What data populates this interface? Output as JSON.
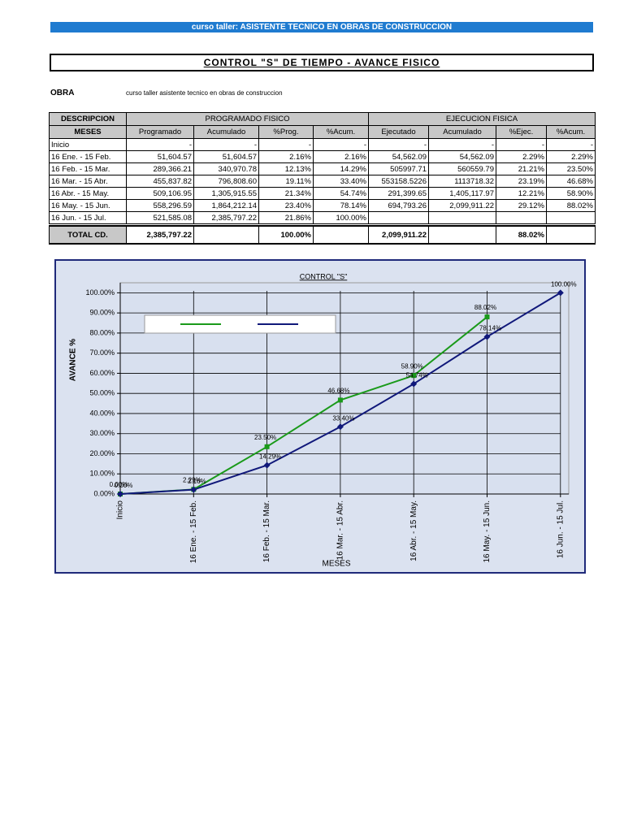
{
  "header": {
    "banner": "curso taller: ASISTENTE TECNICO EN OBRAS DE CONSTRUCCION",
    "title": "CONTROL \"S\"  DE TIEMPO - AVANCE FISICO",
    "obra_label": "OBRA",
    "obra": "curso taller asistente tecnico en obras de construccion"
  },
  "table": {
    "group_headers": [
      "DESCRIPCION",
      "PROGRAMADO FISICO",
      "EJECUCION FISICA"
    ],
    "columns": [
      "MESES",
      "Programado",
      "Acumulado",
      "%Prog.",
      "%Acum.",
      "Ejecutado",
      "Acumulado",
      "%Ejec.",
      "%Acum."
    ],
    "rows": [
      [
        "Inicio",
        "-",
        "-",
        "-",
        "-",
        "-",
        "-",
        "-",
        "-"
      ],
      [
        "16 Ene. - 15 Feb.",
        "51,604.57",
        "51,604.57",
        "2.16%",
        "2.16%",
        "54,562.09",
        "54,562.09",
        "2.29%",
        "2.29%"
      ],
      [
        "16 Feb. - 15 Mar.",
        "289,366.21",
        "340,970.78",
        "12.13%",
        "14.29%",
        "505997.71",
        "560559.79",
        "21.21%",
        "23.50%"
      ],
      [
        "16 Mar. - 15 Abr.",
        "455,837.82",
        "796,808.60",
        "19.11%",
        "33.40%",
        "553158.5226",
        "1113718.32",
        "23.19%",
        "46.68%"
      ],
      [
        "16 Abr. - 15 May.",
        "509,106.95",
        "1,305,915.55",
        "21.34%",
        "54.74%",
        "291,399.65",
        "1,405,117.97",
        "12.21%",
        "58.90%"
      ],
      [
        "16 May. - 15 Jun.",
        "558,296.59",
        "1,864,212.14",
        "23.40%",
        "78.14%",
        "694,793.26",
        "2,099,911.22",
        "29.12%",
        "88.02%"
      ],
      [
        "16 Jun. - 15 Jul.",
        "521,585.08",
        "2,385,797.22",
        "21.86%",
        "100.00%",
        null,
        null,
        null,
        null
      ]
    ],
    "total": [
      "TOTAL CD.",
      "2,385,797.22",
      null,
      "100.00%",
      null,
      "2,099,911.22",
      null,
      "88.02%",
      null
    ]
  },
  "chart_data": {
    "type": "line",
    "title": "CONTROL \"S\"",
    "ylabel": "AVANCE %",
    "xlabel": "MESES",
    "categories": [
      "Inicio",
      "16 Ene. - 15 Feb.",
      "16 Feb. - 15 Mar.",
      "16 Mar. - 15 Abr.",
      "16 Abr. - 15 May.",
      "16 May. - 15 Jun.",
      "16 Jun. - 15 Jul."
    ],
    "series": [
      {
        "color": "#1a9a1a",
        "marker": "square",
        "values": [
          0,
          2.29,
          23.5,
          46.68,
          58.9,
          88.02,
          null
        ],
        "value_labels": [
          "0.00%",
          "2.29%",
          "23.50%",
          "46.68%",
          "58.90%",
          "88.02%",
          null
        ]
      },
      {
        "color": "#10187a",
        "marker": "diamond",
        "values": [
          0,
          2.16,
          14.29,
          33.4,
          54.74,
          78.14,
          100
        ],
        "value_labels": [
          "0.00%",
          "2.16%",
          "14.29%",
          "33.40%",
          "54.74%",
          "78.14%",
          "100.00%"
        ]
      }
    ],
    "ylim": [
      0,
      105
    ],
    "yticks": [
      {
        "value": 0,
        "label": "0.00%"
      },
      {
        "value": 10,
        "label": "10.00%"
      },
      {
        "value": 20,
        "label": "20.00%"
      },
      {
        "value": 30,
        "label": "30.00%"
      },
      {
        "value": 40,
        "label": "40.00%"
      },
      {
        "value": 50,
        "label": "50.00%"
      },
      {
        "value": 60,
        "label": "60.00%"
      },
      {
        "value": 70,
        "label": "70.00%"
      },
      {
        "value": 80,
        "label": "80.00%"
      },
      {
        "value": 90,
        "label": "90.00%"
      },
      {
        "value": 100,
        "label": "100.00%"
      }
    ],
    "grid": true
  }
}
